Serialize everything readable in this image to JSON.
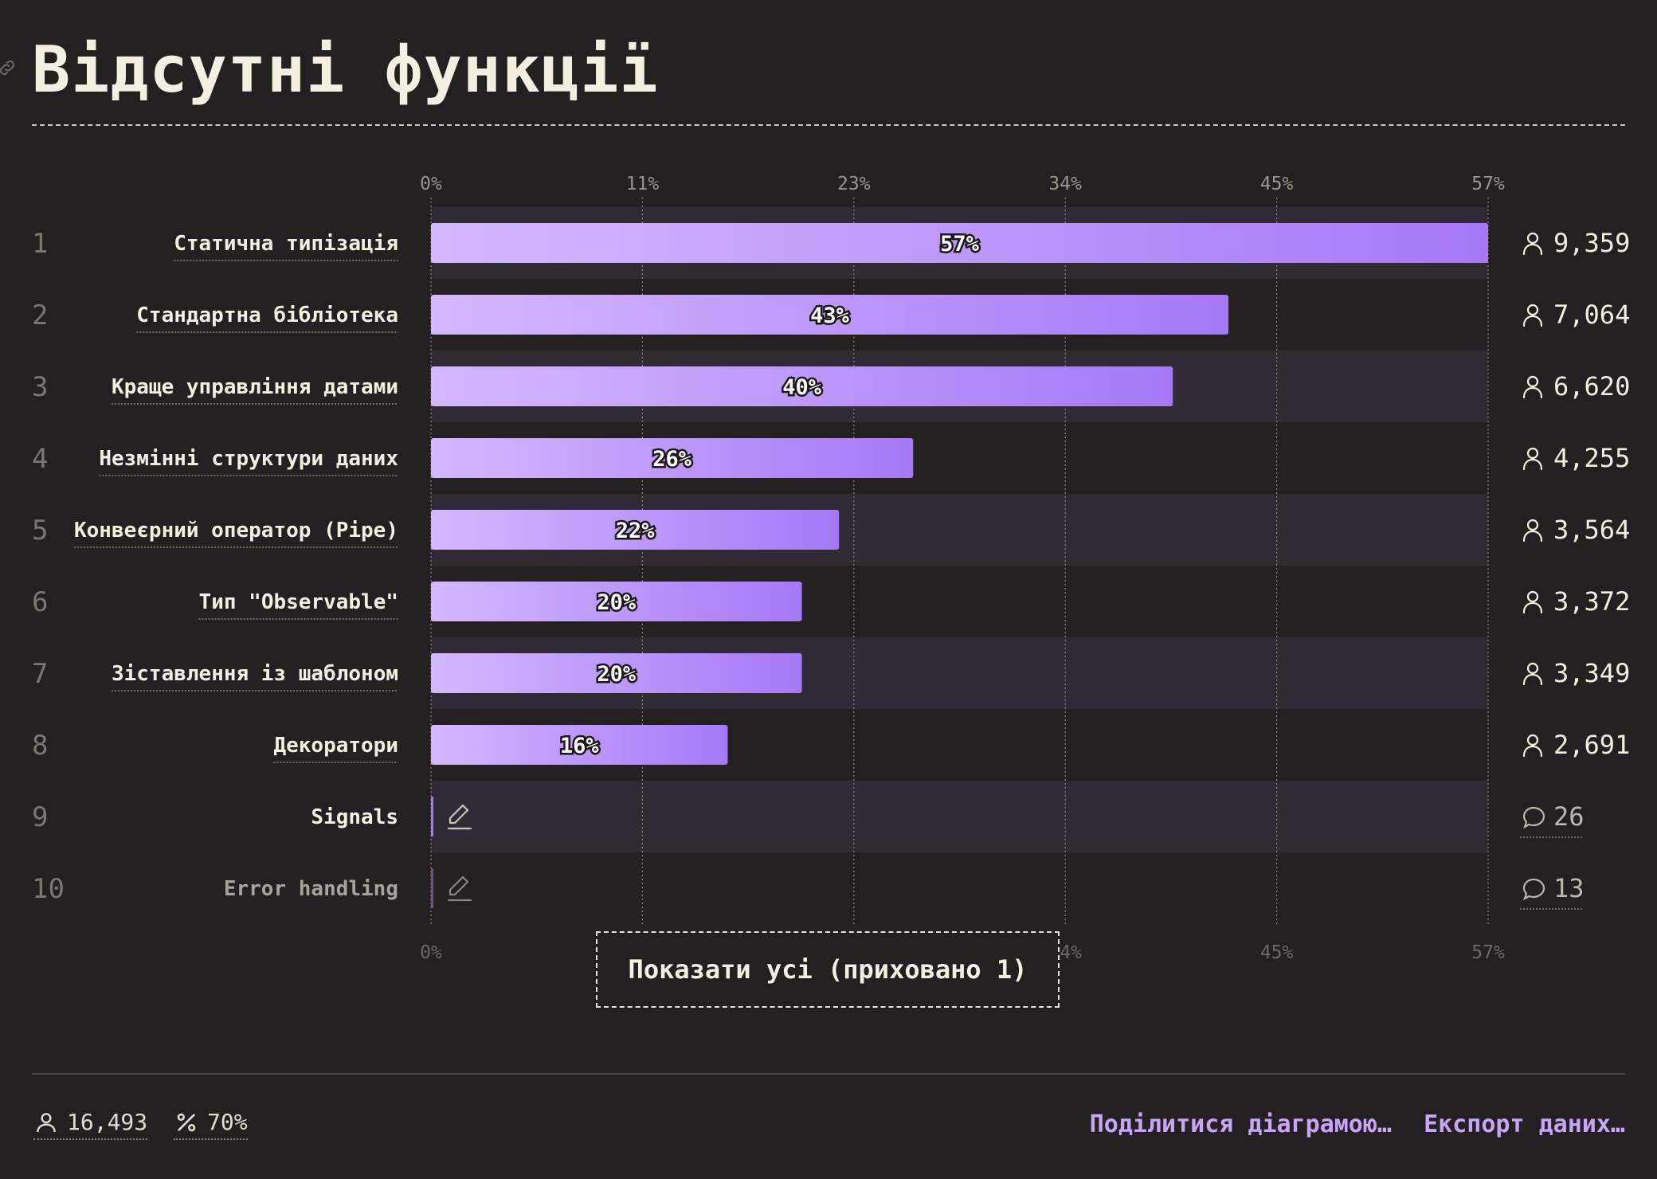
{
  "header": {
    "title": "Відсутні функції"
  },
  "chart_data": {
    "type": "bar",
    "orientation": "horizontal",
    "x_ticks": [
      "0%",
      "11%",
      "23%",
      "34%",
      "45%",
      "57%"
    ],
    "xlim": [
      0,
      57
    ],
    "categories": [
      "Статична типізація",
      "Стандартна бібліотека",
      "Краще управління датами",
      "Незмінні структури даних",
      "Конвеєрний оператор (Pipe)",
      "Тип \"Observable\"",
      "Зіставлення із шаблоном",
      "Декоратори",
      "Signals",
      "Error handling"
    ],
    "ranks": [
      "1",
      "2",
      "3",
      "4",
      "5",
      "6",
      "7",
      "8",
      "9",
      "10"
    ],
    "values": [
      57,
      43,
      40,
      26,
      22,
      20,
      20,
      16,
      null,
      null
    ],
    "value_labels": [
      "57%",
      "43%",
      "40%",
      "26%",
      "22%",
      "20%",
      "20%",
      "16%",
      "",
      ""
    ],
    "counts": [
      "9,359",
      "7,064",
      "6,620",
      "4,255",
      "3,564",
      "3,372",
      "3,349",
      "2,691",
      "26",
      "13"
    ],
    "count_kinds": [
      "respondents",
      "respondents",
      "respondents",
      "respondents",
      "respondents",
      "respondents",
      "respondents",
      "respondents",
      "comments",
      "comments"
    ],
    "grid": true,
    "colors": {
      "bar_start": "#d4b8ff",
      "bar_end": "#a678f7",
      "stripe": "#302a35"
    }
  },
  "controls": {
    "show_all": "Показати усі (приховано 1)"
  },
  "footer": {
    "respondents": "16,493",
    "percent": "70%",
    "share": "Поділитися діаграмою…",
    "export": "Експорт даних…"
  }
}
